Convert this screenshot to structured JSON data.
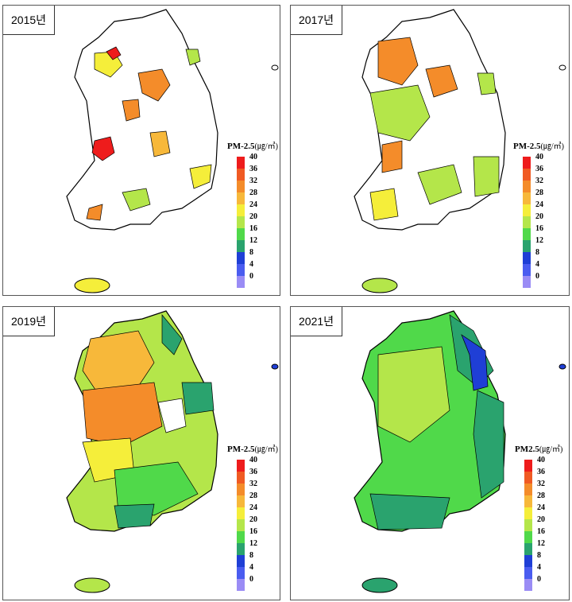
{
  "panels": [
    {
      "id": "p2015",
      "year_label": "2015년",
      "legend_title": "PM-2.5",
      "legend_unit": "(㎍/㎥)",
      "fill_default": "#ffffff",
      "blobs": [
        {
          "c": "#f08c2a",
          "v": 30
        },
        {
          "c": "#e63a28",
          "v": 38
        },
        {
          "c": "#f7ea3a",
          "v": 26
        },
        {
          "c": "#9ee040",
          "v": 22
        },
        {
          "c": "#f4a23a",
          "v": 30
        },
        {
          "c": "#f7ea3a",
          "v": 26
        }
      ]
    },
    {
      "id": "p2017",
      "year_label": "2017년",
      "legend_title": "PM-2.5",
      "legend_unit": "(㎍/㎥)",
      "fill_default": "#ffffff"
    },
    {
      "id": "p2019",
      "year_label": "2019년",
      "legend_title": "PM-2.5",
      "legend_unit": "(㎍/㎥)",
      "fill_default": "#7ed957"
    },
    {
      "id": "p2021",
      "year_label": "2021년",
      "legend_title": "PM2.5",
      "legend_unit": "(㎍/㎥)",
      "fill_default": "#4fcf4f"
    }
  ],
  "legend": {
    "ticks": [
      "40",
      "36",
      "32",
      "28",
      "24",
      "20",
      "16",
      "12",
      "8",
      "4",
      "0"
    ],
    "colors": [
      "#ee1c1c",
      "#f05a23",
      "#f48c2a",
      "#f7b83a",
      "#f5ee3a",
      "#b4e64a",
      "#50d94a",
      "#2aa36e",
      "#1f3fd6",
      "#4a5cf0",
      "#9a8cf5"
    ]
  },
  "colors": {
    "border": "#000000",
    "island": "#a7e14c"
  }
}
